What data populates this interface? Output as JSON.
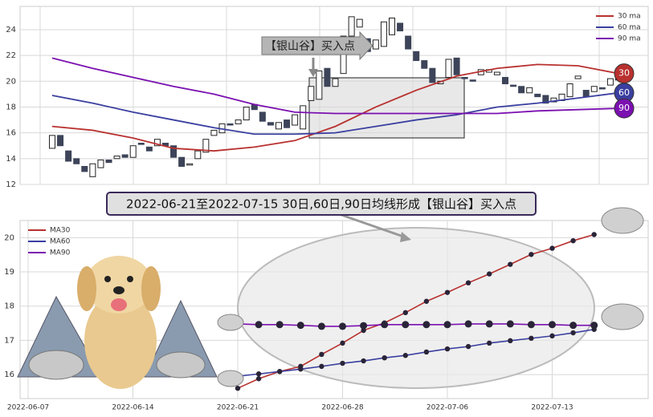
{
  "chart_data": [
    {
      "type": "candlestick",
      "grid": true,
      "legend": "upper right",
      "ylim": [
        12,
        25.8
      ],
      "yticks": [
        12,
        14,
        16,
        18,
        20,
        22,
        24
      ],
      "annotation": "【银山谷】买入点",
      "candles": {
        "up_color": "#ffffff",
        "down_color": "#3d4459",
        "open": [
          14.8,
          15.8,
          14.6,
          14.0,
          13.4,
          12.6,
          13.3,
          13.9,
          14.0,
          14.3,
          14.1,
          15.2,
          14.9,
          15.0,
          15.2,
          15.0,
          14.1,
          13.5,
          14.0,
          14.5,
          15.8,
          16.0,
          16.7,
          16.7,
          17.0,
          18.2,
          17.6,
          16.8,
          16.3,
          17.0,
          16.6,
          16.3,
          18.5,
          18.6,
          21.0,
          19.6,
          20.6,
          23.5,
          24.2,
          23.3,
          22.5,
          22.7,
          23.6,
          24.5,
          23.5,
          22.3,
          21.6,
          21.0,
          19.8,
          20.3,
          21.8,
          20.3,
          20.1,
          20.5,
          20.7,
          20.5,
          20.3,
          19.7,
          19.6,
          19.1,
          19.0,
          18.9,
          18.4,
          18.5,
          18.8,
          20.2,
          19.3,
          19.2,
          19.5,
          19.7,
          20.1
        ],
        "close": [
          15.8,
          15.0,
          13.8,
          13.6,
          13.0,
          13.6,
          13.9,
          13.7,
          14.2,
          14.1,
          15.0,
          15.1,
          14.6,
          15.5,
          15.0,
          14.1,
          13.4,
          13.6,
          14.6,
          15.5,
          16.2,
          16.7,
          16.6,
          17.0,
          18.0,
          17.8,
          16.9,
          16.6,
          16.8,
          16.4,
          17.4,
          18.1,
          19.6,
          20.8,
          19.6,
          20.2,
          23.5,
          25.0,
          24.8,
          22.3,
          23.2,
          24.6,
          24.9,
          23.9,
          22.5,
          21.6,
          21.0,
          19.9,
          20.0,
          21.7,
          20.5,
          20.2,
          20.0,
          20.9,
          20.9,
          20.7,
          19.8,
          19.6,
          19.1,
          19.5,
          18.8,
          18.3,
          18.7,
          19.0,
          19.8,
          20.4,
          18.8,
          19.6,
          19.4,
          20.2,
          20.5
        ]
      },
      "series": [
        {
          "name": "30 ma",
          "color": "#b8312f",
          "badge": "30",
          "values": [
            16.5,
            16.2,
            15.6,
            14.8,
            14.6,
            14.9,
            15.4,
            16.5,
            18.0,
            19.3,
            20.4,
            21.0,
            21.3,
            21.2,
            20.6
          ]
        },
        {
          "name": "60 ma",
          "color": "#3a3fa0",
          "badge": "60",
          "values": [
            18.9,
            18.3,
            17.6,
            17.0,
            16.4,
            15.9,
            15.9,
            16.0,
            16.5,
            17.0,
            17.4,
            18.0,
            18.3,
            18.7,
            19.1
          ]
        },
        {
          "name": "90 ma",
          "color": "#7b10b0",
          "badge": "90",
          "values": [
            21.8,
            21.0,
            20.3,
            19.6,
            19.0,
            18.2,
            17.6,
            17.5,
            17.5,
            17.5,
            17.5,
            17.5,
            17.7,
            17.8,
            17.9
          ]
        }
      ]
    },
    {
      "type": "line",
      "grid": true,
      "legend": "upper left",
      "title": "2022-06-21至2022-07-15 30日,60日,90日均线形成【银山谷】买入点",
      "ylim": [
        15.3,
        20.5
      ],
      "yticks": [
        16,
        17,
        18,
        19,
        20
      ],
      "categories": [
        "2022-06-07",
        null,
        null,
        null,
        null,
        "2022-06-14",
        null,
        null,
        null,
        null,
        "2022-06-21",
        null,
        null,
        null,
        null,
        "2022-06-28",
        null,
        null,
        null,
        null,
        "2022-07-06",
        null,
        null,
        null,
        null,
        "2022-07-13",
        null,
        null
      ],
      "series": [
        {
          "name": "MA30",
          "color": "#b8312f",
          "values": [
            null,
            null,
            null,
            null,
            null,
            null,
            null,
            null,
            null,
            null,
            15.6,
            15.88,
            16.09,
            16.24,
            16.59,
            16.92,
            17.29,
            17.51,
            17.81,
            18.14,
            18.4,
            18.68,
            18.94,
            19.22,
            19.51,
            19.69,
            19.91,
            20.09
          ]
        },
        {
          "name": "MA60",
          "color": "#3a3fa0",
          "values": [
            null,
            null,
            null,
            null,
            null,
            null,
            null,
            null,
            null,
            null,
            15.95,
            16.02,
            16.09,
            16.16,
            16.24,
            16.33,
            16.4,
            16.49,
            16.56,
            16.66,
            16.75,
            16.82,
            16.92,
            16.99,
            17.06,
            17.13,
            17.22,
            17.32
          ]
        },
        {
          "name": "MA90",
          "color": "#7b10b0",
          "values": [
            null,
            null,
            null,
            null,
            null,
            null,
            null,
            null,
            null,
            null,
            17.48,
            17.46,
            17.46,
            17.44,
            17.41,
            17.41,
            17.43,
            17.46,
            17.46,
            17.46,
            17.46,
            17.48,
            17.48,
            17.48,
            17.46,
            17.46,
            17.44,
            17.44
          ]
        }
      ]
    }
  ]
}
